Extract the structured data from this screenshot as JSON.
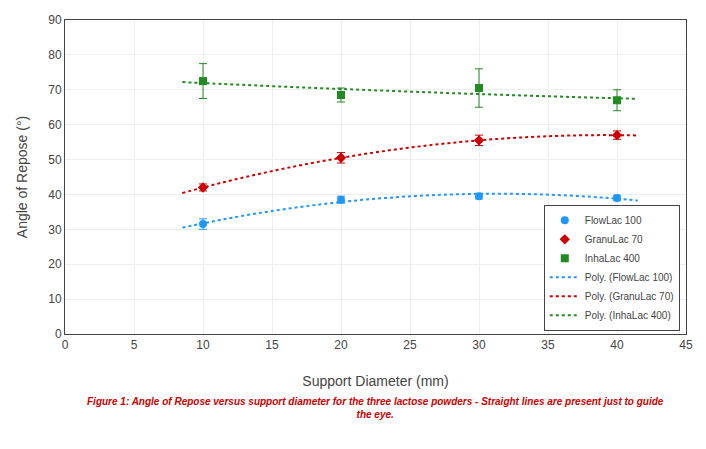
{
  "chart_data": {
    "type": "scatter",
    "xlabel": "Support Diameter (mm)",
    "ylabel": "Angle of Repose (°)",
    "xlim": [
      0,
      45
    ],
    "ylim": [
      0,
      90
    ],
    "xticks": [
      0,
      5,
      10,
      15,
      20,
      25,
      30,
      35,
      40,
      45
    ],
    "yticks": [
      0,
      10,
      20,
      30,
      40,
      50,
      60,
      70,
      80,
      90
    ],
    "grid": true,
    "legend": "lower right",
    "series": [
      {
        "name": "FlowLac 100",
        "type": "scatter",
        "color": "#1F97FF",
        "marker": "circle",
        "x": [
          10,
          20,
          30,
          40
        ],
        "values": [
          31.5,
          38.5,
          39.5,
          39.0
        ],
        "error": [
          1.5,
          1.0,
          0.8,
          0.8
        ]
      },
      {
        "name": "GranuLac 70",
        "type": "scatter",
        "color": "#CC0000",
        "marker": "diamond",
        "x": [
          10,
          20,
          30,
          40
        ],
        "values": [
          42.0,
          50.5,
          55.5,
          57.0
        ],
        "error": [
          1.0,
          1.5,
          1.5,
          1.2
        ]
      },
      {
        "name": "InhaLac 400",
        "type": "scatter",
        "color": "#228B22",
        "marker": "square",
        "x": [
          10,
          20,
          30,
          40
        ],
        "values": [
          72.5,
          68.5,
          70.5,
          67.0
        ],
        "error": [
          5.0,
          2.0,
          5.5,
          3.0
        ]
      },
      {
        "name": "Poly. (FlowLac 100)",
        "type": "line",
        "color": "#1F97FF",
        "line_style": "dotted",
        "x": [
          8.5,
          11.5,
          14.5,
          17.5,
          20.5,
          23.5,
          26.5,
          29.5,
          32.5,
          35.5,
          38.5,
          41.5
        ],
        "values": [
          30.487,
          32.879,
          34.934,
          36.652,
          38.032,
          39.074,
          39.779,
          40.147,
          40.177,
          39.869,
          39.224,
          38.242
        ]
      },
      {
        "name": "Poly. (GranuLac 70)",
        "type": "line",
        "color": "#CC0000",
        "line_style": "dotted",
        "x": [
          8.5,
          11.5,
          14.5,
          17.5,
          20.5,
          23.5,
          26.5,
          29.5,
          32.5,
          35.5,
          38.5,
          41.5
        ],
        "values": [
          40.423,
          43.498,
          46.258,
          48.703,
          50.833,
          52.648,
          54.148,
          55.333,
          56.203,
          56.758,
          56.998,
          56.923
        ]
      },
      {
        "name": "Poly. (InhaLac 400)",
        "type": "line",
        "color": "#228B22",
        "line_style": "dotted",
        "x": [
          8.5,
          11.5,
          14.5,
          17.5,
          20.5,
          23.5,
          26.5,
          29.5,
          32.5,
          35.5,
          38.5,
          41.5
        ],
        "values": [
          72.202,
          71.654,
          71.129,
          70.627,
          70.147,
          69.689,
          69.254,
          68.842,
          68.452,
          68.084,
          67.739,
          67.417
        ]
      }
    ],
    "annotations": [
      {
        "text": "Figure 1: Angle of Repose versus support diameter for the three lactose powders - Straight lines are present just to guide",
        "color": "#CC0000"
      },
      {
        "text": "the eye.",
        "color": "#CC0000"
      }
    ]
  }
}
